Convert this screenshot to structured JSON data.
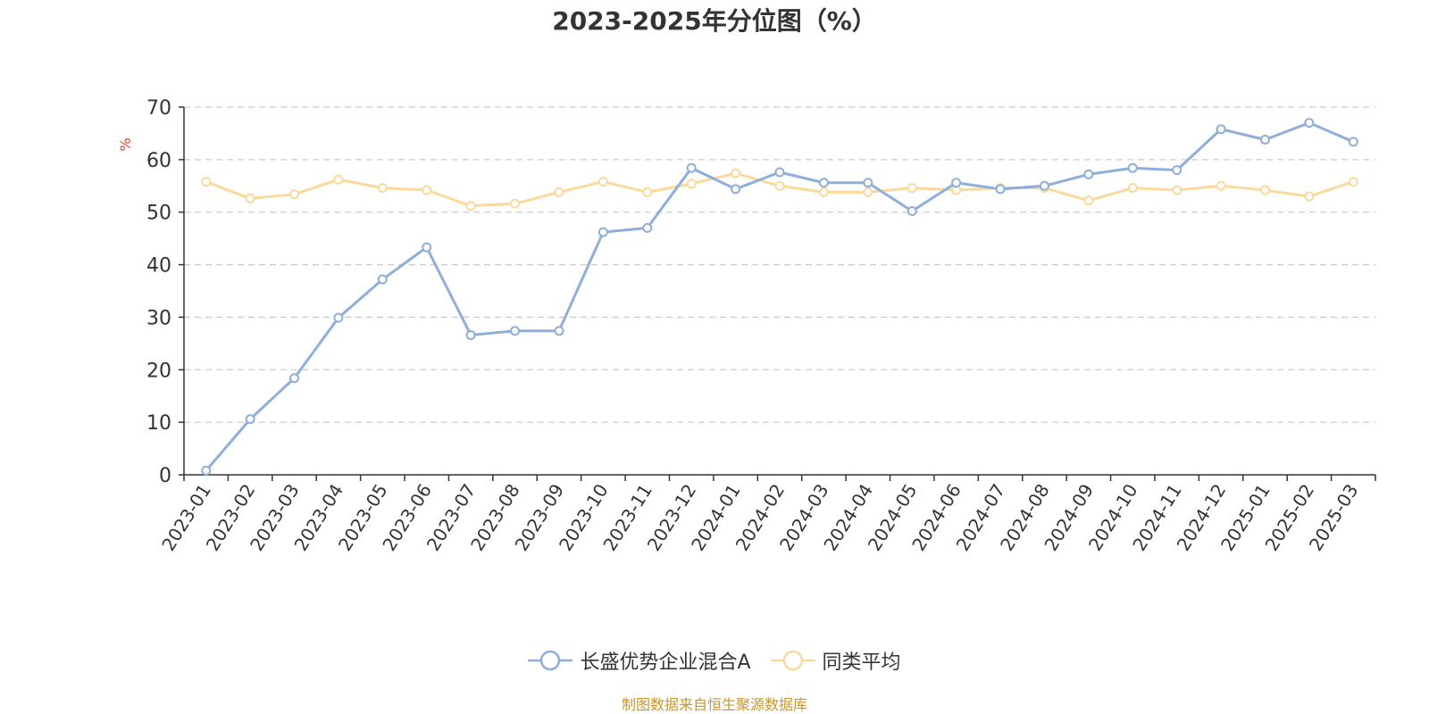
{
  "chart_data": {
    "type": "line",
    "title": "2023-2025年分位图（%）",
    "ylabel": "%",
    "xlabel": "",
    "ylim": [
      0,
      70
    ],
    "yticks": [
      0,
      10,
      20,
      30,
      40,
      50,
      60,
      70
    ],
    "grid": true,
    "legend_position": "bottom",
    "categories": [
      "2023-01",
      "2023-02",
      "2023-03",
      "2023-04",
      "2023-05",
      "2023-06",
      "2023-07",
      "2023-08",
      "2023-09",
      "2023-10",
      "2023-11",
      "2023-12",
      "2024-01",
      "2024-02",
      "2024-03",
      "2024-04",
      "2024-05",
      "2024-06",
      "2024-07",
      "2024-08",
      "2024-09",
      "2024-10",
      "2024-11",
      "2024-12",
      "2025-01",
      "2025-02",
      "2025-03"
    ],
    "series": [
      {
        "name": "长盛优势企业混合A",
        "color": "#8eaedb",
        "values": [
          0.8,
          10.6,
          18.4,
          29.9,
          37.2,
          43.3,
          26.6,
          27.4,
          27.4,
          46.2,
          47.0,
          58.4,
          54.4,
          57.6,
          55.6,
          55.6,
          50.2,
          55.6,
          54.4,
          55.0,
          57.2,
          58.4,
          58.0,
          65.8,
          63.8,
          67.0,
          63.4
        ]
      },
      {
        "name": "同类平均",
        "color": "#fbd99b",
        "values": [
          55.8,
          52.6,
          53.4,
          56.2,
          54.6,
          54.2,
          51.2,
          51.6,
          53.8,
          55.8,
          53.8,
          55.4,
          57.4,
          55.0,
          53.8,
          53.8,
          54.6,
          54.2,
          54.6,
          54.6,
          52.2,
          54.6,
          54.2,
          55.0,
          54.2,
          53.0,
          55.8
        ]
      }
    ]
  },
  "source_note": "制图数据来自恒生聚源数据库",
  "colors": {
    "grid": "#cccccc",
    "axis": "#333333",
    "unit_label": "#e33b3b",
    "source": "#c8962e"
  }
}
